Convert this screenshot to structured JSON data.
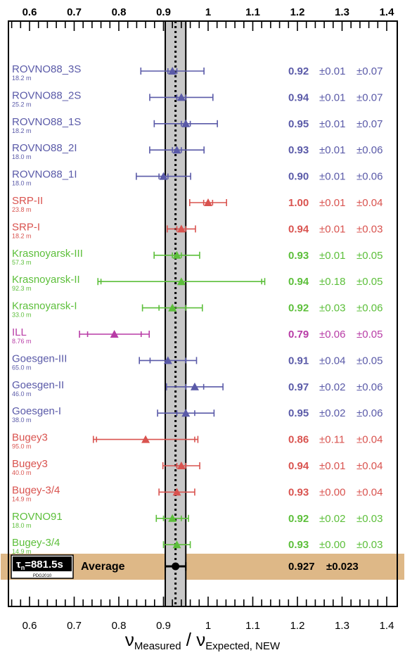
{
  "chart_data": {
    "type": "scatter",
    "x_axis_label_main": "ν",
    "x_axis_label_sub_measured": "Measured",
    "x_axis_label_slash": " / ν",
    "x_axis_label_sub_expected": "Expected, NEW",
    "xlim": [
      0.55,
      1.42
    ],
    "ticks": [
      0.6,
      0.7,
      0.8,
      0.9,
      1.0,
      1.1,
      1.2,
      1.3,
      1.4
    ],
    "tick_labels": [
      "0.6",
      "0.7",
      "0.8",
      "0.9",
      "1",
      "1.1",
      "1.2",
      "1.3",
      "1.4"
    ],
    "average": {
      "label": "Average",
      "value": 0.927,
      "value_text": "0.927",
      "err_text": "±0.023",
      "err_low": 0.904,
      "err_high": 0.95,
      "band_color": "#deb887",
      "badge_main": "τ",
      "badge_sub": "n",
      "badge_value": "=881.5s",
      "badge_small": "PDG2010"
    },
    "colors": {
      "blue": "#5a5aa8",
      "red": "#d9534f",
      "green": "#5cbf3a",
      "magenta": "#b83ca6",
      "band": "#c8c8c8"
    },
    "experiments": [
      {
        "name": "ROVNO88_3S",
        "distance": "18.2 m",
        "value": 0.92,
        "stat_err": 0.01,
        "syst_err": 0.07,
        "value_text": "0.92",
        "stat_text": "±0.01",
        "syst_text": "±0.07",
        "color": "blue"
      },
      {
        "name": "ROVNO88_2S",
        "distance": "25.2 m",
        "value": 0.94,
        "stat_err": 0.01,
        "syst_err": 0.07,
        "value_text": "0.94",
        "stat_text": "±0.01",
        "syst_text": "±0.07",
        "color": "blue"
      },
      {
        "name": "ROVNO88_1S",
        "distance": "18.2 m",
        "value": 0.95,
        "stat_err": 0.01,
        "syst_err": 0.07,
        "value_text": "0.95",
        "stat_text": "±0.01",
        "syst_text": "±0.07",
        "color": "blue"
      },
      {
        "name": "ROVNO88_2I",
        "distance": "18.0 m",
        "value": 0.93,
        "stat_err": 0.01,
        "syst_err": 0.06,
        "value_text": "0.93",
        "stat_text": "±0.01",
        "syst_text": "±0.06",
        "color": "blue"
      },
      {
        "name": "ROVNO88_1I",
        "distance": "18.0 m",
        "value": 0.9,
        "stat_err": 0.01,
        "syst_err": 0.06,
        "value_text": "0.90",
        "stat_text": "±0.01",
        "syst_text": "±0.06",
        "color": "blue"
      },
      {
        "name": "SRP-II",
        "distance": "23.8 m",
        "value": 1.0,
        "stat_err": 0.01,
        "syst_err": 0.04,
        "value_text": "1.00",
        "stat_text": "±0.01",
        "syst_text": "±0.04",
        "color": "red"
      },
      {
        "name": "SRP-I",
        "distance": "18.2 m",
        "value": 0.94,
        "stat_err": 0.01,
        "syst_err": 0.03,
        "value_text": "0.94",
        "stat_text": "±0.01",
        "syst_text": "±0.03",
        "color": "red"
      },
      {
        "name": "Krasnoyarsk-III",
        "distance": "57.3 m",
        "value": 0.93,
        "stat_err": 0.01,
        "syst_err": 0.05,
        "value_text": "0.93",
        "stat_text": "±0.01",
        "syst_text": "±0.05",
        "color": "green"
      },
      {
        "name": "Krasnoyarsk-II",
        "distance": "92.3 m",
        "value": 0.94,
        "stat_err": 0.18,
        "syst_err": 0.05,
        "value_text": "0.94",
        "stat_text": "±0.18",
        "syst_text": "±0.05",
        "color": "green"
      },
      {
        "name": "Krasnoyarsk-I",
        "distance": "33.0 m",
        "value": 0.92,
        "stat_err": 0.03,
        "syst_err": 0.06,
        "value_text": "0.92",
        "stat_text": "±0.03",
        "syst_text": "±0.06",
        "color": "green"
      },
      {
        "name": "ILL",
        "distance": "8.76 m",
        "value": 0.79,
        "stat_err": 0.06,
        "syst_err": 0.05,
        "value_text": "0.79",
        "stat_text": "±0.06",
        "syst_text": "±0.05",
        "color": "magenta"
      },
      {
        "name": "Goesgen-III",
        "distance": "65.0 m",
        "value": 0.91,
        "stat_err": 0.04,
        "syst_err": 0.05,
        "value_text": "0.91",
        "stat_text": "±0.04",
        "syst_text": "±0.05",
        "color": "blue"
      },
      {
        "name": "Goesgen-II",
        "distance": "46.0 m",
        "value": 0.97,
        "stat_err": 0.02,
        "syst_err": 0.06,
        "value_text": "0.97",
        "stat_text": "±0.02",
        "syst_text": "±0.06",
        "color": "blue"
      },
      {
        "name": "Goesgen-I",
        "distance": "38.0 m",
        "value": 0.95,
        "stat_err": 0.02,
        "syst_err": 0.06,
        "value_text": "0.95",
        "stat_text": "±0.02",
        "syst_text": "±0.06",
        "color": "blue"
      },
      {
        "name": "Bugey3",
        "distance": "95.0 m",
        "value": 0.86,
        "stat_err": 0.11,
        "syst_err": 0.04,
        "value_text": "0.86",
        "stat_text": "±0.11",
        "syst_text": "±0.04",
        "color": "red"
      },
      {
        "name": "Bugey3",
        "distance": "40.0 m",
        "value": 0.94,
        "stat_err": 0.01,
        "syst_err": 0.04,
        "value_text": "0.94",
        "stat_text": "±0.01",
        "syst_text": "±0.04",
        "color": "red"
      },
      {
        "name": "Bugey-3/4",
        "distance": "14.9 m",
        "value": 0.93,
        "stat_err": 0.0,
        "syst_err": 0.04,
        "value_text": "0.93",
        "stat_text": "±0.00",
        "syst_text": "±0.04",
        "color": "red"
      },
      {
        "name": "ROVNO91",
        "distance": "18.0 m",
        "value": 0.92,
        "stat_err": 0.02,
        "syst_err": 0.03,
        "value_text": "0.92",
        "stat_text": "±0.02",
        "syst_text": "±0.03",
        "color": "green"
      },
      {
        "name": "Bugey-3/4",
        "distance": "14.9 m",
        "value": 0.93,
        "stat_err": 0.0,
        "syst_err": 0.03,
        "value_text": "0.93",
        "stat_text": "±0.00",
        "syst_text": "±0.03",
        "color": "green"
      }
    ]
  }
}
